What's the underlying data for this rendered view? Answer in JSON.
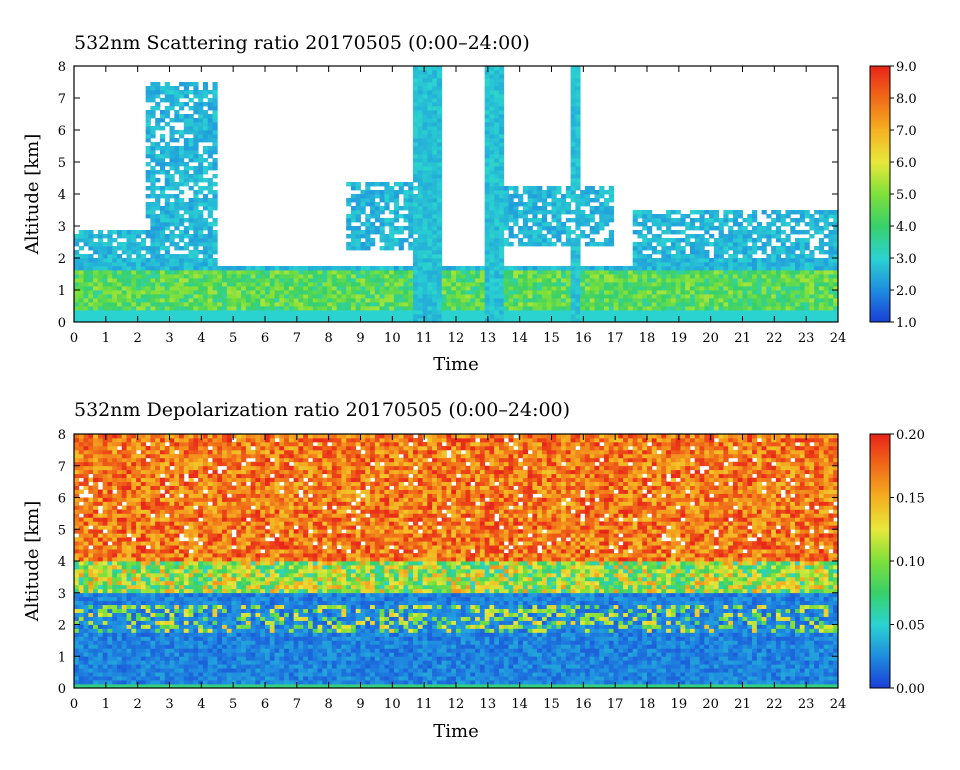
{
  "chart_data": [
    {
      "type": "heatmap",
      "title": "532nm Scattering ratio  20170505 (0:00–24:00)",
      "xlabel": "Time",
      "ylabel": "Altitude [km]",
      "xlim": [
        0,
        24
      ],
      "ylim": [
        0,
        8
      ],
      "x_ticks": [
        "0",
        "1",
        "2",
        "3",
        "4",
        "5",
        "6",
        "7",
        "8",
        "9",
        "10",
        "11",
        "12",
        "13",
        "14",
        "15",
        "16",
        "17",
        "18",
        "19",
        "20",
        "21",
        "22",
        "23",
        "24"
      ],
      "y_ticks": [
        "0",
        "1",
        "2",
        "3",
        "4",
        "5",
        "6",
        "7",
        "8"
      ],
      "colorbar": {
        "range": [
          1.0,
          9.0
        ],
        "ticks": [
          "1.0",
          "2.0",
          "3.0",
          "4.0",
          "5.0",
          "6.0",
          "7.0",
          "8.0",
          "9.0"
        ],
        "colors": [
          "#1a3fd6",
          "#1f8de0",
          "#2ad3d0",
          "#37d06a",
          "#7ee03a",
          "#e8e83a",
          "#f5b020",
          "#f06a18",
          "#e8241a"
        ]
      },
      "features": {
        "cloud_layers": [
          {
            "t_start": 0.0,
            "t_end": 2.7,
            "base_km": 0.4,
            "top_km": 2.9
          },
          {
            "t_start": 2.3,
            "t_end": 4.5,
            "base_km": 1.8,
            "top_km": 7.5
          },
          {
            "t_start": 8.5,
            "t_end": 10.8,
            "base_km": 2.2,
            "top_km": 4.4
          },
          {
            "t_start": 13.5,
            "t_end": 17.0,
            "base_km": 2.4,
            "top_km": 4.2
          },
          {
            "t_start": 17.5,
            "t_end": 24.0,
            "base_km": 0.4,
            "top_km": 3.5
          }
        ],
        "clear_columns": [
          {
            "t": 10.9,
            "width": 0.55
          },
          {
            "t": 11.3,
            "width": 0.5
          },
          {
            "t": 13.2,
            "width": 0.5
          },
          {
            "t": 15.7,
            "width": 0.3
          }
        ],
        "boundary_layer_top_km": 1.6
      }
    },
    {
      "type": "heatmap",
      "title": "532nm Depolarization ratio  20170505 (0:00–24:00)",
      "xlabel": "Time",
      "ylabel": "Altitude [km]",
      "xlim": [
        0,
        24
      ],
      "ylim": [
        0,
        8
      ],
      "x_ticks": [
        "0",
        "1",
        "2",
        "3",
        "4",
        "5",
        "6",
        "7",
        "8",
        "9",
        "10",
        "11",
        "12",
        "13",
        "14",
        "15",
        "16",
        "17",
        "18",
        "19",
        "20",
        "21",
        "22",
        "23",
        "24"
      ],
      "y_ticks": [
        "0",
        "1",
        "2",
        "3",
        "4",
        "5",
        "6",
        "7",
        "8"
      ],
      "colorbar": {
        "range": [
          0.0,
          0.2
        ],
        "ticks": [
          "0.00",
          "0.05",
          "0.10",
          "0.15",
          "0.20"
        ],
        "colors": [
          "#1a3fd6",
          "#1f8de0",
          "#2ad3d0",
          "#37d06a",
          "#7ee03a",
          "#e8e83a",
          "#f5b020",
          "#f06a18",
          "#e8241a"
        ]
      },
      "features": {
        "noisy_high_altitude_km": 4.0,
        "low_depolarization_layer_top_km": 3.0,
        "dust_layer_km": [
          1.8,
          2.6
        ]
      }
    }
  ]
}
